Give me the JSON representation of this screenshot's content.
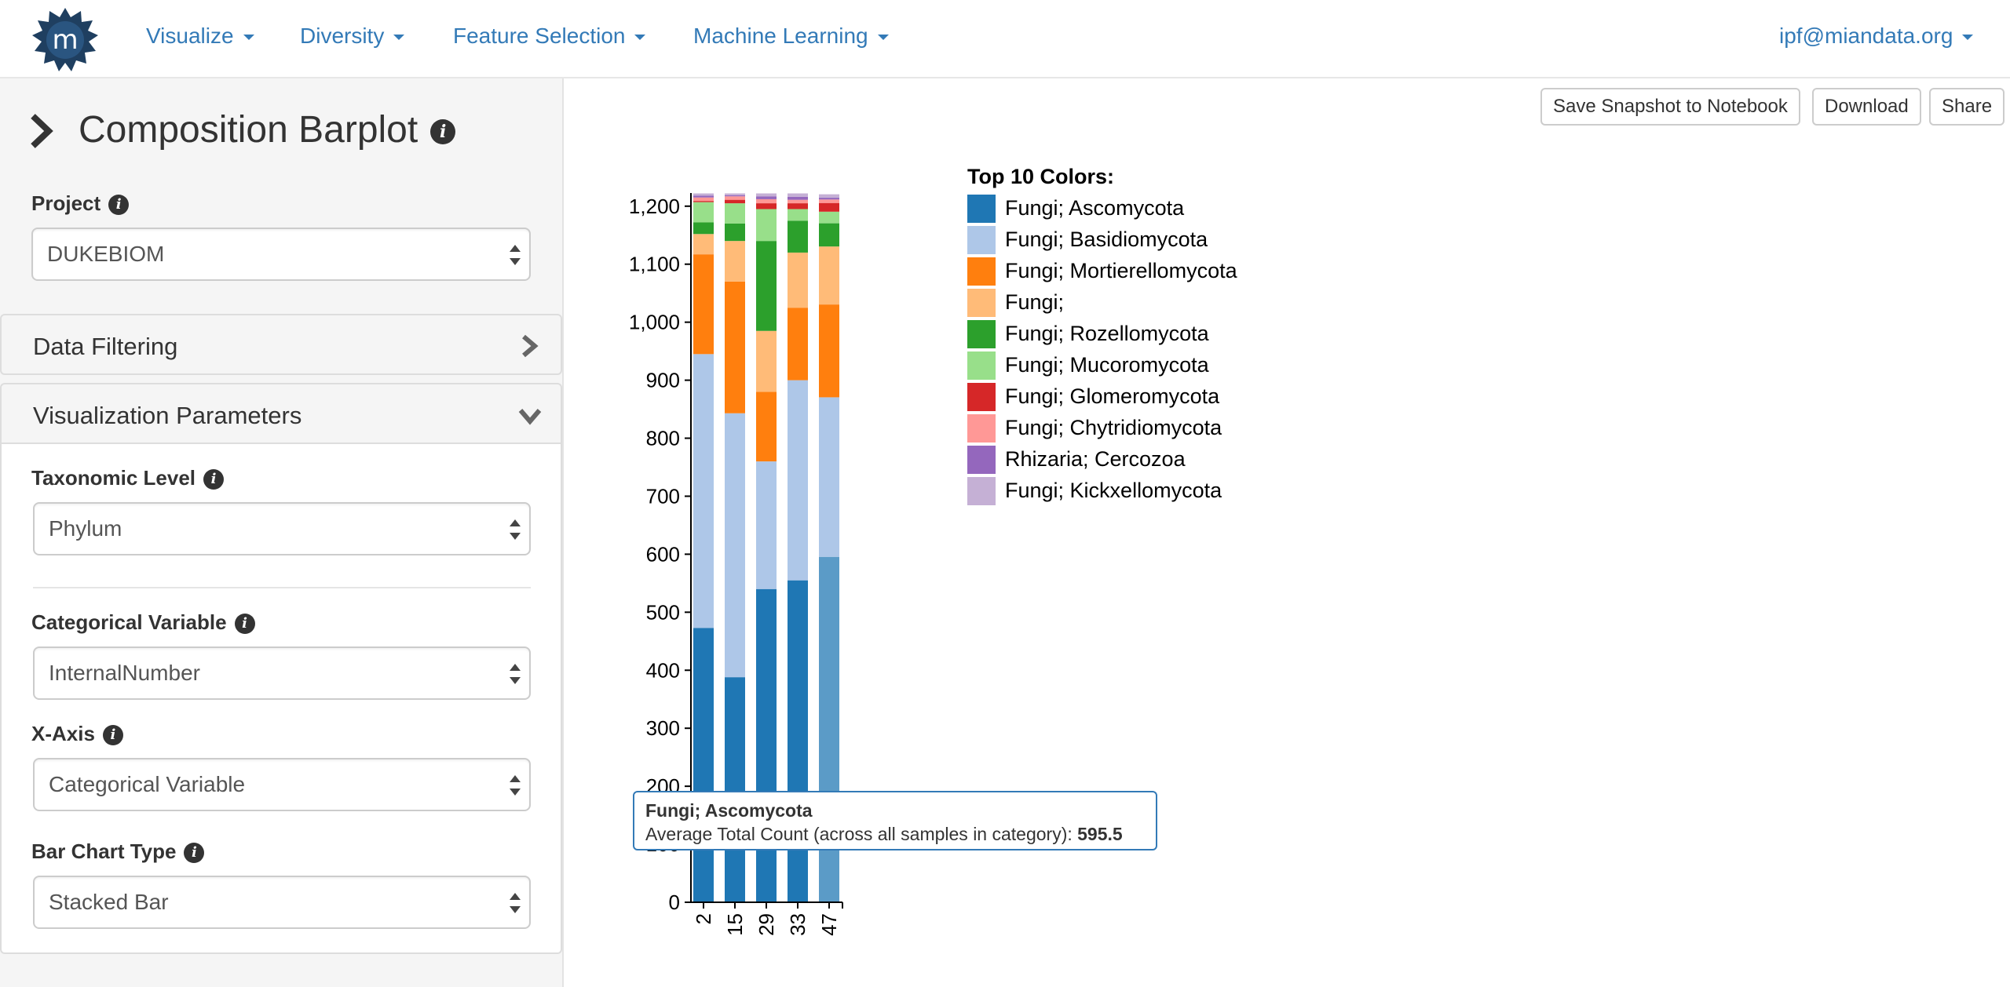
{
  "nav": {
    "items": [
      {
        "label": "Visualize"
      },
      {
        "label": "Diversity"
      },
      {
        "label": "Feature Selection"
      },
      {
        "label": "Machine Learning"
      }
    ],
    "user": "ipf@miandata.org",
    "logo_letter": "m"
  },
  "sidebar": {
    "title": "Composition Barplot",
    "project": {
      "label": "Project",
      "value": "DUKEBIOM"
    },
    "data_filtering": {
      "title": "Data Filtering"
    },
    "viz_params": {
      "title": "Visualization Parameters",
      "taxonomic_level": {
        "label": "Taxonomic Level",
        "value": "Phylum"
      },
      "categorical_variable": {
        "label": "Categorical Variable",
        "value": "InternalNumber"
      },
      "x_axis": {
        "label": "X-Axis",
        "value": "Categorical Variable"
      },
      "bar_chart_type": {
        "label": "Bar Chart Type",
        "value": "Stacked Bar"
      }
    }
  },
  "toolbar": {
    "save_label": "Save Snapshot to Notebook",
    "download_label": "Download",
    "share_label": "Share"
  },
  "chart_data": {
    "type": "bar",
    "stacked": true,
    "categories": [
      "2",
      "15",
      "29",
      "33",
      "47"
    ],
    "ylim": [
      0,
      1220
    ],
    "yticks": [
      0,
      100,
      200,
      300,
      400,
      500,
      600,
      700,
      800,
      900,
      1000,
      1100,
      1200
    ],
    "ytick_labels": [
      "0",
      "100",
      "200",
      "300",
      "400",
      "500",
      "600",
      "700",
      "800",
      "900",
      "1,000",
      "1,100",
      "1,200"
    ],
    "legend_title": "Top 10 Colors:",
    "legend_position": "right",
    "series": [
      {
        "name": "Fungi; Ascomycota",
        "color": "#1f77b4",
        "values": [
          473,
          388,
          540,
          555,
          595.5
        ]
      },
      {
        "name": "Fungi; Basidiomycota",
        "color": "#aec7e8",
        "values": [
          472,
          455,
          220,
          345,
          275
        ]
      },
      {
        "name": "Fungi; Mortierellomycota",
        "color": "#ff7f0e",
        "values": [
          172,
          227,
          120,
          125,
          160
        ]
      },
      {
        "name": "Fungi;",
        "color": "#ffbb78",
        "values": [
          35,
          70,
          105,
          95,
          100
        ]
      },
      {
        "name": "Fungi; Rozellomycota",
        "color": "#2ca02c",
        "values": [
          20,
          30,
          155,
          55,
          40
        ]
      },
      {
        "name": "Fungi; Mucoromycota",
        "color": "#98df8a",
        "values": [
          35,
          35,
          55,
          20,
          20
        ]
      },
      {
        "name": "Fungi; Glomeromycota",
        "color": "#d62728",
        "values": [
          2,
          6,
          10,
          10,
          15
        ]
      },
      {
        "name": "Fungi; Chytridiomycota",
        "color": "#ff9896",
        "values": [
          6,
          6,
          7,
          6,
          6
        ]
      },
      {
        "name": "Rhizaria; Cercozoa",
        "color": "#9467bd",
        "values": [
          3,
          2,
          5,
          5,
          3
        ]
      },
      {
        "name": "Fungi; Kickxellomycota",
        "color": "#c5b0d5",
        "values": [
          4,
          3,
          5,
          6,
          6
        ]
      }
    ],
    "highlighted": {
      "category": "47",
      "series": "Fungi; Ascomycota",
      "color": "#5b9bc7"
    },
    "tooltip": {
      "title": "Fungi; Ascomycota",
      "text": "Average Total Count (across all samples in category): ",
      "value": "595.5"
    }
  }
}
